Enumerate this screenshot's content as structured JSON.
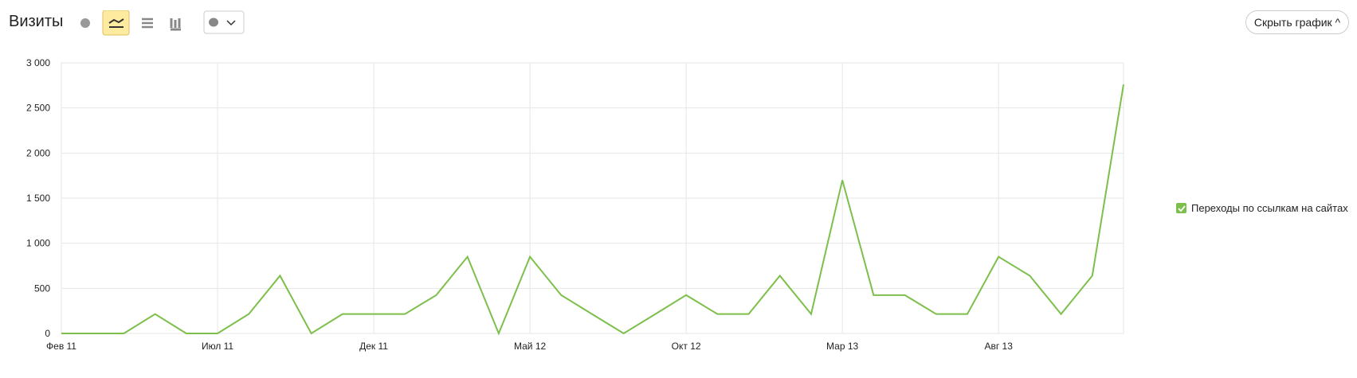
{
  "header": {
    "title": "Визиты",
    "button": "Скрыть график"
  },
  "chart_data": {
    "type": "line",
    "categories": [
      "Фев 11",
      null,
      null,
      null,
      null,
      "Июл 11",
      null,
      null,
      null,
      null,
      "Дек 11",
      null,
      null,
      null,
      null,
      "Май 12",
      null,
      null,
      null,
      null,
      "Окт 12",
      null,
      null,
      null,
      null,
      "Мар 13",
      null,
      null,
      null,
      null,
      "Авг 13",
      null,
      null,
      null,
      null
    ],
    "series": [
      {
        "name": "Переходы по ссылкам на сайтах",
        "color": "#7cbf4a",
        "values": [
          0,
          0,
          0,
          215,
          0,
          0,
          215,
          640,
          0,
          215,
          215,
          215,
          425,
          850,
          0,
          850,
          425,
          212,
          0,
          212,
          425,
          215,
          215,
          640,
          215,
          1700,
          425,
          425,
          215,
          215,
          850,
          640,
          215,
          640,
          2760
        ]
      }
    ],
    "ylim": [
      0,
      3000
    ],
    "yticks": [
      {
        "value": 0,
        "label": "0"
      },
      {
        "value": 500,
        "label": "500"
      },
      {
        "value": 1000,
        "label": "1 000"
      },
      {
        "value": 1500,
        "label": "1 500"
      },
      {
        "value": 2000,
        "label": "2 000"
      },
      {
        "value": 2500,
        "label": "2 500"
      },
      {
        "value": 3000,
        "label": "3 000"
      }
    ],
    "grid": true
  }
}
